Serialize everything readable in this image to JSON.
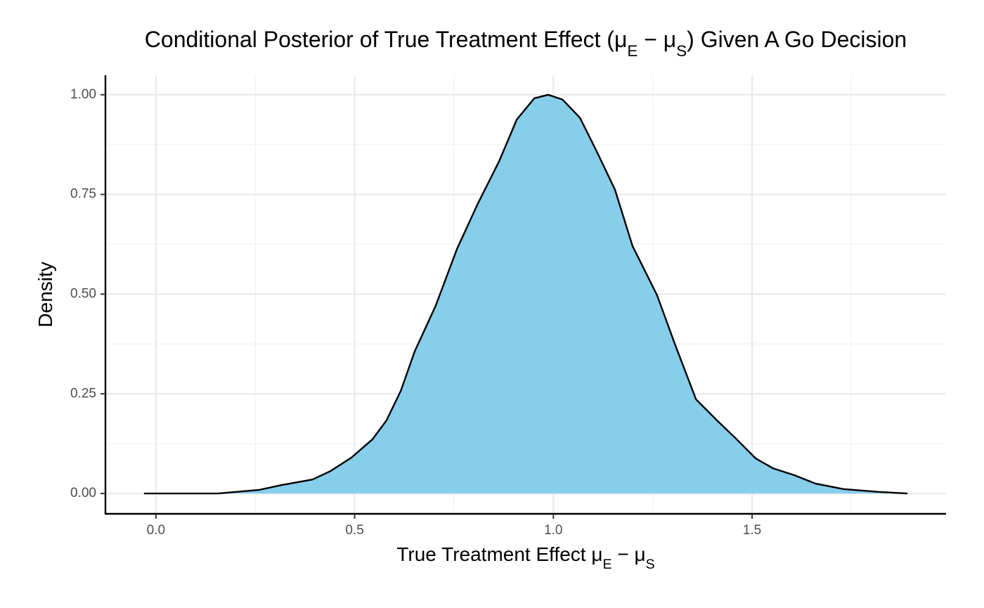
{
  "chart_data": {
    "type": "area",
    "title": [
      "Conditional Posterior of True Treatment Effect (μ",
      "E",
      " − μ",
      "S",
      ") Given A Go Decision"
    ],
    "xlabel": [
      "True Treatment Effect μ",
      "E",
      " − μ",
      "S"
    ],
    "ylabel": "Density",
    "x": [
      -0.03,
      0.156,
      0.26,
      0.315,
      0.394,
      0.439,
      0.492,
      0.545,
      0.58,
      0.616,
      0.651,
      0.704,
      0.757,
      0.81,
      0.863,
      0.908,
      0.952,
      0.987,
      1.023,
      1.067,
      1.111,
      1.155,
      1.199,
      1.261,
      1.306,
      1.359,
      1.412,
      1.456,
      1.509,
      1.553,
      1.606,
      1.659,
      1.73,
      1.818,
      1.891
    ],
    "series": [
      {
        "color": "#87ceeb",
        "line_color": "#000000",
        "values": [
          0.0,
          0.0,
          0.009,
          0.021,
          0.035,
          0.056,
          0.09,
          0.136,
          0.183,
          0.257,
          0.356,
          0.471,
          0.612,
          0.727,
          0.832,
          0.938,
          0.991,
          1.0,
          0.988,
          0.942,
          0.854,
          0.762,
          0.621,
          0.497,
          0.374,
          0.236,
          0.183,
          0.141,
          0.088,
          0.063,
          0.046,
          0.025,
          0.011,
          0.004,
          0.0
        ]
      }
    ],
    "xlim": [
      -0.127,
      1.988
    ],
    "ylim": [
      -0.051,
      1.049
    ],
    "xticks": [
      {
        "value": 0,
        "label": "0.0"
      },
      {
        "value": 0.5,
        "label": "0.5"
      },
      {
        "value": 1,
        "label": "1.0"
      },
      {
        "value": 1.5,
        "label": "1.5"
      }
    ],
    "yticks": [
      {
        "value": 0,
        "label": "0.00"
      },
      {
        "value": 0.25,
        "label": "0.25"
      },
      {
        "value": 0.5,
        "label": "0.50"
      },
      {
        "value": 0.75,
        "label": "0.75"
      },
      {
        "value": 1,
        "label": "1.00"
      }
    ],
    "xminor": [
      0.25,
      0.75,
      1.25,
      1.75
    ],
    "yminor": [
      0.125,
      0.375,
      0.625,
      0.875
    ],
    "grid": true
  }
}
